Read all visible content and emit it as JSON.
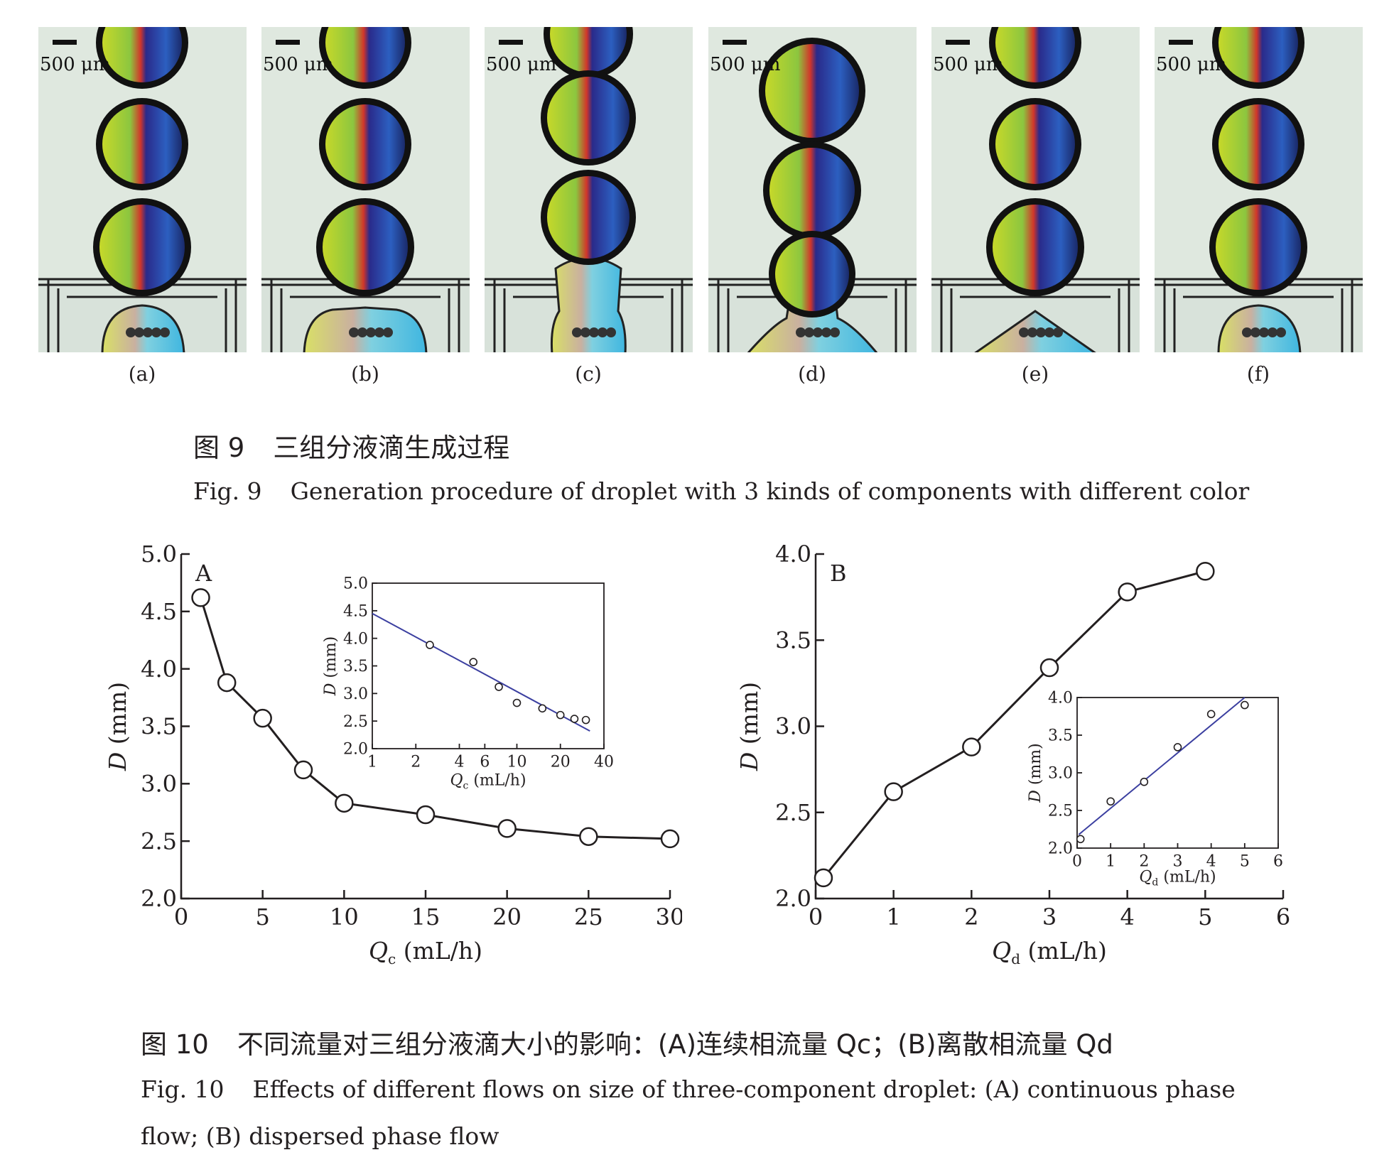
{
  "fig9": {
    "scale_label": "500 μm",
    "panels": [
      "(a)",
      "(b)",
      "(c)",
      "(d)",
      "(e)",
      "(f)"
    ],
    "caption_cn_num": "图 9",
    "caption_cn": "三组分液滴生成过程",
    "caption_en_num": "Fig. 9",
    "caption_en": "Generation procedure of droplet with 3 kinds of components with different color"
  },
  "fig10": {
    "caption_cn_num": "图 10",
    "caption_cn": "不同流量对三组分液滴大小的影响：(A)连续相流量 Qc；(B)离散相流量 Qd",
    "caption_en_num": "Fig. 10",
    "caption_en_line1": "Effects of different flows on size of three-component droplet: (A) continuous phase",
    "caption_en_line2": "flow; (B) dispersed phase flow"
  },
  "chart_data": [
    {
      "id": "A",
      "type": "line",
      "panel_label": "A",
      "xlabel": "Qc (mL/h)",
      "ylabel": "D (mm)",
      "xlim": [
        0,
        30
      ],
      "ylim": [
        2.0,
        5.0
      ],
      "xticks": [
        0,
        5,
        10,
        15,
        20,
        25,
        30
      ],
      "yticks": [
        "2.0",
        "2.5",
        "3.0",
        "3.5",
        "4.0",
        "4.5",
        "5.0"
      ],
      "x": [
        1.2,
        2.8,
        5,
        7.5,
        10,
        15,
        20,
        25,
        30
      ],
      "y": [
        4.62,
        3.88,
        3.57,
        3.12,
        2.83,
        2.73,
        2.61,
        2.54,
        2.52
      ],
      "inset": {
        "type": "scatter",
        "xscale": "log",
        "xlabel": "Qc (mL/h)",
        "ylabel": "D (mm)",
        "xlim": [
          1,
          40
        ],
        "ylim": [
          2.0,
          5.0
        ],
        "xticks": [
          1,
          2,
          4,
          6,
          10,
          20,
          40
        ],
        "yticks": [
          "2.0",
          "2.5",
          "3.0",
          "3.5",
          "4.0",
          "4.5",
          "5.0"
        ],
        "x": [
          2.5,
          5,
          7.5,
          10,
          15,
          20,
          25,
          30
        ],
        "y": [
          3.88,
          3.57,
          3.12,
          2.83,
          2.73,
          2.61,
          2.54,
          2.52
        ],
        "fit": {
          "x": [
            1,
            32
          ],
          "y": [
            4.45,
            2.32
          ]
        },
        "fit_color": "#3b3fa0"
      }
    },
    {
      "id": "B",
      "type": "line",
      "panel_label": "B",
      "xlabel": "Qd (mL/h)",
      "ylabel": "D (mm)",
      "xlim": [
        0,
        6
      ],
      "ylim": [
        2.0,
        4.0
      ],
      "xticks": [
        0,
        1,
        2,
        3,
        4,
        5,
        6
      ],
      "yticks": [
        "2.0",
        "2.5",
        "3.0",
        "3.5",
        "4.0"
      ],
      "x": [
        0.1,
        1,
        2,
        3,
        4,
        5
      ],
      "y": [
        2.12,
        2.62,
        2.88,
        3.34,
        3.78,
        3.9
      ],
      "inset": {
        "type": "scatter",
        "xlabel": "Qd (mL/h)",
        "ylabel": "D (mm)",
        "xlim": [
          0,
          6
        ],
        "ylim": [
          2.0,
          4.0
        ],
        "xticks": [
          0,
          1,
          2,
          3,
          4,
          5,
          6
        ],
        "yticks": [
          "2.0",
          "2.5",
          "3.0",
          "3.5",
          "4.0"
        ],
        "x": [
          0.1,
          1,
          2,
          3,
          4,
          5
        ],
        "y": [
          2.12,
          2.62,
          2.88,
          3.34,
          3.78,
          3.9
        ],
        "fit": {
          "x": [
            0.05,
            5
          ],
          "y": [
            2.18,
            4.0
          ]
        },
        "fit_color": "#3b3fa0"
      }
    }
  ]
}
